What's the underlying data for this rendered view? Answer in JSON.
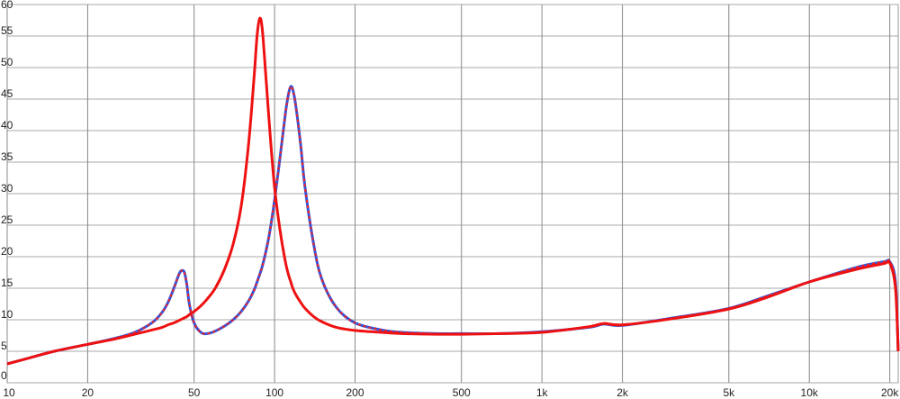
{
  "chart_data": {
    "type": "line",
    "xscale": "log",
    "grid": true,
    "x": [
      10,
      12,
      15,
      20,
      25,
      30,
      35,
      38,
      40,
      42,
      44,
      45,
      46,
      47,
      48,
      50,
      53,
      56,
      60,
      65,
      70,
      75,
      80,
      84,
      86,
      88,
      90,
      93,
      96,
      100,
      105,
      110,
      113,
      115,
      117,
      120,
      125,
      130,
      140,
      150,
      170,
      200,
      250,
      300,
      400,
      500,
      700,
      1000,
      1500,
      1700,
      2000,
      3000,
      5000,
      7000,
      10000,
      15000,
      19000,
      20000,
      21000,
      21500
    ],
    "series": [
      {
        "color": "#3355dd",
        "style": "solid",
        "values": [
          3.0,
          3.9,
          5.0,
          6.1,
          7.0,
          8.0,
          9.6,
          11.2,
          12.8,
          15.0,
          17.3,
          17.8,
          17.5,
          15.5,
          12.5,
          9.5,
          8.0,
          7.8,
          8.2,
          9.0,
          10.0,
          11.3,
          13,
          14.8,
          16,
          17.2,
          18.5,
          21,
          24,
          29,
          36,
          43,
          46,
          47,
          46.5,
          44,
          38,
          31,
          22,
          16.5,
          12,
          9.5,
          8.4,
          8.0,
          7.8,
          7.8,
          7.8,
          8.1,
          8.8,
          9.3,
          9.1,
          10.2,
          11.8,
          13.8,
          16,
          18.3,
          19.2,
          19.2,
          16,
          5
        ]
      },
      {
        "color": "#ee2222",
        "style": "dashed",
        "values": [
          3.0,
          3.9,
          5.0,
          6.1,
          7.0,
          8.0,
          9.6,
          11.2,
          12.8,
          15.0,
          17.3,
          17.8,
          17.5,
          15.5,
          12.5,
          9.5,
          8.0,
          7.8,
          8.2,
          9.0,
          10.0,
          11.3,
          13,
          14.8,
          16,
          17.2,
          18.5,
          21,
          24,
          29,
          36,
          43,
          46,
          47,
          46.5,
          44,
          38,
          31,
          22,
          16.5,
          12,
          9.5,
          8.4,
          8.0,
          7.8,
          7.8,
          7.8,
          8.1,
          8.8,
          9.3,
          9.1,
          10.2,
          11.8,
          13.8,
          16,
          18.3,
          19.2,
          19.2,
          16,
          5
        ]
      },
      {
        "color": "#ee1111",
        "style": "solid",
        "values": [
          3.0,
          3.9,
          5.0,
          6.1,
          6.9,
          7.7,
          8.4,
          8.8,
          9.2,
          9.5,
          9.9,
          10.1,
          10.3,
          10.5,
          10.8,
          11.3,
          12.2,
          13.3,
          15,
          18,
          22,
          28,
          38,
          49,
          55,
          57.8,
          56,
          48,
          40,
          31,
          24,
          19,
          17,
          16,
          15,
          14,
          12.8,
          11.8,
          10.5,
          9.7,
          8.8,
          8.3,
          8.0,
          7.8,
          7.7,
          7.7,
          7.8,
          8.0,
          8.9,
          9.4,
          9.2,
          10.1,
          11.7,
          13.6,
          16,
          18.0,
          18.9,
          19.0,
          15,
          5
        ]
      }
    ],
    "xlim": [
      10,
      21500
    ],
    "xticks": [
      10,
      20,
      50,
      100,
      200,
      500,
      {
        "value": 1000,
        "label": "1k"
      },
      {
        "value": 2000,
        "label": "2k"
      },
      {
        "value": 5000,
        "label": "5k"
      },
      {
        "value": 10000,
        "label": "10k"
      },
      {
        "value": 20000,
        "label": "20k"
      }
    ],
    "ylim": [
      0,
      60
    ],
    "yticks": [
      0,
      5,
      10,
      15,
      20,
      25,
      30,
      35,
      40,
      45,
      50,
      55,
      60
    ]
  }
}
